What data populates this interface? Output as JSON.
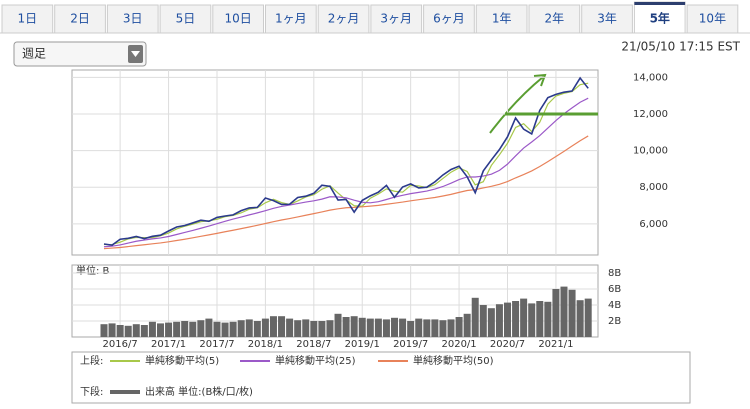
{
  "tabs": [
    "1日",
    "2日",
    "3日",
    "5日",
    "10日",
    "1ヶ月",
    "2ヶ月",
    "3ヶ月",
    "6ヶ月",
    "1年",
    "2年",
    "3年",
    "5年",
    "10年"
  ],
  "active_tab": "5年",
  "dropdown": "週足",
  "timestamp": "21/05/10 17:15 EST",
  "legend_labels": {
    "upper": "上段:",
    "lower": "下段:"
  },
  "chart_data": [
    {
      "type": "line",
      "categories": [
        null,
        null,
        "2016/7",
        null,
        null,
        null,
        null,
        null,
        "2017/1",
        null,
        null,
        null,
        null,
        null,
        "2017/7",
        null,
        null,
        null,
        null,
        null,
        "2018/1",
        null,
        null,
        null,
        null,
        null,
        "2018/7",
        null,
        null,
        null,
        null,
        null,
        "2019/1",
        null,
        null,
        null,
        null,
        null,
        "2019/7",
        null,
        null,
        null,
        null,
        null,
        "2020/1",
        null,
        null,
        null,
        null,
        null,
        "2020/7",
        null,
        null,
        null,
        null,
        null,
        "2021/1",
        null,
        null,
        null,
        null
      ],
      "values": [
        4900,
        4840,
        5160,
        5210,
        5310,
        5190,
        5320,
        5380,
        5610,
        5830,
        5910,
        6050,
        6200,
        6140,
        6350,
        6430,
        6490,
        6720,
        6870,
        6900,
        7410,
        7270,
        7060,
        7070,
        7440,
        7510,
        7670,
        8110,
        8050,
        7300,
        7330,
        6640,
        7280,
        7530,
        7730,
        8100,
        7450,
        8010,
        8180,
        7960,
        8000,
        8290,
        8670,
        8970,
        9150,
        8570,
        7700,
        8890,
        9490,
        10060,
        10750,
        11780,
        11170,
        10910,
        12200,
        12890,
        13070,
        13190,
        13250,
        13960,
        13400
      ],
      "color": "#2b3a8c",
      "series": [
        {
          "name": "単純移動平均(5)",
          "color": "#a8c84a",
          "values": [
            4870,
            4870,
            5000,
            5180,
            5260,
            5250,
            5250,
            5350,
            5500,
            5720,
            5870,
            5980,
            6120,
            6170,
            6250,
            6390,
            6460,
            6600,
            6800,
            6880,
            7150,
            7340,
            7160,
            7060,
            7250,
            7470,
            7590,
            7890,
            8080,
            7680,
            7310,
            6990,
            6960,
            7400,
            7630,
            7910,
            7780,
            7730,
            8100,
            8070,
            7980,
            8140,
            8480,
            8820,
            9060,
            8860,
            8130,
            8300,
            9190,
            9770,
            10400,
            11260,
            11470,
            11040,
            11550,
            12540,
            12980,
            13130,
            13220,
            13600,
            13680
          ]
        },
        {
          "name": "単純移動平均(25)",
          "color": "#9b59c8",
          "values": [
            4750,
            4780,
            4850,
            4950,
            5050,
            5120,
            5180,
            5230,
            5310,
            5420,
            5530,
            5640,
            5760,
            5880,
            6010,
            6140,
            6260,
            6370,
            6490,
            6600,
            6720,
            6850,
            6950,
            7030,
            7110,
            7190,
            7260,
            7350,
            7480,
            7470,
            7420,
            7290,
            7180,
            7150,
            7210,
            7330,
            7460,
            7560,
            7650,
            7720,
            7790,
            7900,
            8040,
            8220,
            8420,
            8560,
            8560,
            8610,
            8710,
            8920,
            9260,
            9710,
            10140,
            10470,
            10820,
            11230,
            11640,
            12010,
            12330,
            12640,
            12860
          ]
        },
        {
          "name": "単純移動平均(50)",
          "color": "#e8825a",
          "values": [
            4650,
            4680,
            4710,
            4760,
            4810,
            4860,
            4910,
            4960,
            5020,
            5090,
            5160,
            5240,
            5320,
            5400,
            5480,
            5570,
            5650,
            5740,
            5830,
            5920,
            6020,
            6120,
            6210,
            6290,
            6380,
            6470,
            6560,
            6650,
            6750,
            6820,
            6880,
            6900,
            6930,
            6970,
            7010,
            7070,
            7130,
            7190,
            7260,
            7320,
            7380,
            7440,
            7520,
            7610,
            7720,
            7820,
            7870,
            7960,
            8050,
            8160,
            8310,
            8510,
            8690,
            8890,
            9130,
            9400,
            9680,
            9960,
            10250,
            10540,
            10800
          ]
        }
      ],
      "ylim": [
        4300,
        14400
      ],
      "yticks": [
        {
          "value": 6000,
          "label": "6,000"
        },
        {
          "value": 8000,
          "label": "8,000"
        },
        {
          "value": 10000,
          "label": "10,000"
        },
        {
          "value": 12000,
          "label": "12,000"
        },
        {
          "value": 14000,
          "label": "14,000"
        }
      ],
      "hline": 12000,
      "hline_color": "#5a9e32",
      "grid": true
    },
    {
      "type": "bar",
      "unit_label": "単位: B",
      "series": [
        {
          "name": "出来高 単位:(B株/口/枚)",
          "color": "#666666",
          "values": [
            1.6,
            1.7,
            1.5,
            1.4,
            1.6,
            1.5,
            1.9,
            1.7,
            1.8,
            1.9,
            2.0,
            1.9,
            2.1,
            2.3,
            1.9,
            1.8,
            1.9,
            2.1,
            2.2,
            2.0,
            2.3,
            2.6,
            2.6,
            2.3,
            2.1,
            2.2,
            2.0,
            2.0,
            2.1,
            2.9,
            2.5,
            2.6,
            2.4,
            2.3,
            2.3,
            2.2,
            2.4,
            2.3,
            2.0,
            2.3,
            2.2,
            2.2,
            2.1,
            2.2,
            2.5,
            2.9,
            4.9,
            4.0,
            3.6,
            4.1,
            4.3,
            4.5,
            4.8,
            4.2,
            4.5,
            4.4,
            6.0,
            6.3,
            5.9,
            4.6,
            4.8
          ]
        }
      ],
      "ylim": [
        0,
        9
      ],
      "yticks": [
        {
          "value": 2,
          "label": "2B"
        },
        {
          "value": 4,
          "label": "4B"
        },
        {
          "value": 6,
          "label": "6B"
        },
        {
          "value": 8,
          "label": "8B"
        }
      ],
      "grid": true
    }
  ]
}
